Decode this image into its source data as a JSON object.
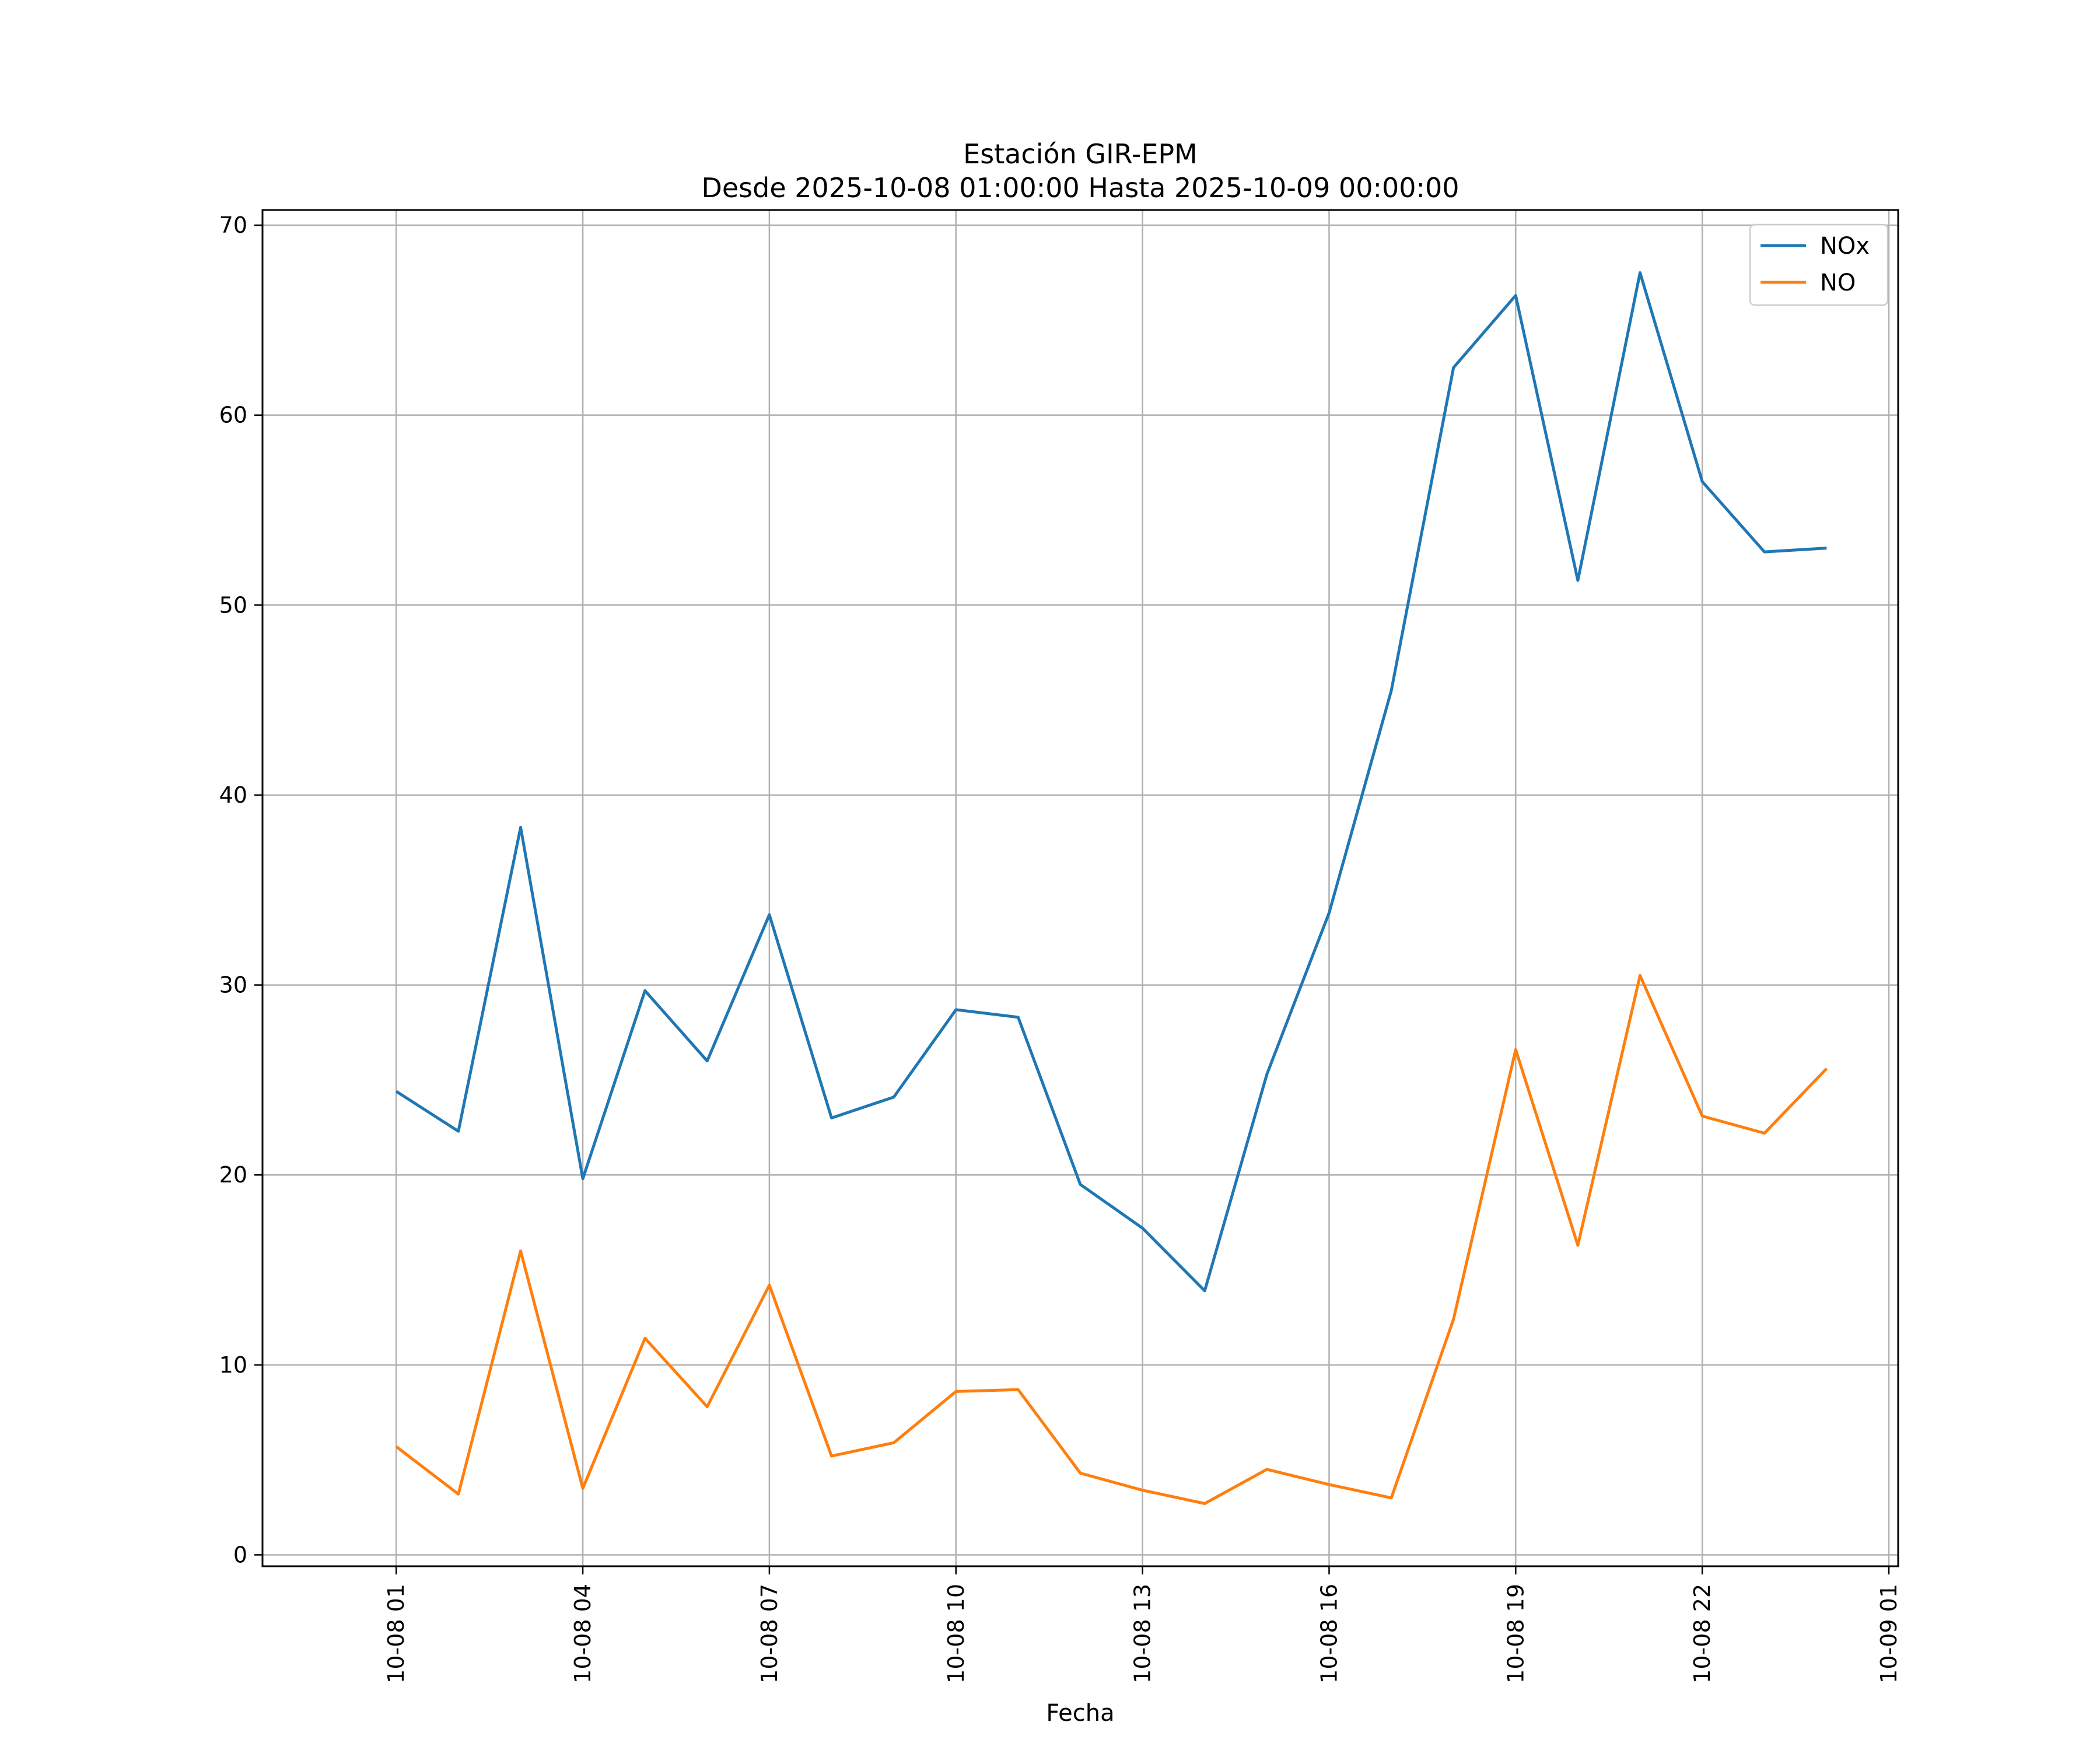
{
  "chart_data": {
    "type": "line",
    "title": "Estación GIR-EPM",
    "subtitle": "Desde 2025-10-08 01:00:00 Hasta 2025-10-09 00:00:00",
    "xlabel": "Fecha",
    "ylabel": "",
    "x": [
      "2025-10-08 01:00",
      "2025-10-08 02:00",
      "2025-10-08 03:00",
      "2025-10-08 04:00",
      "2025-10-08 05:00",
      "2025-10-08 06:00",
      "2025-10-08 07:00",
      "2025-10-08 08:00",
      "2025-10-08 09:00",
      "2025-10-08 10:00",
      "2025-10-08 11:00",
      "2025-10-08 12:00",
      "2025-10-08 13:00",
      "2025-10-08 14:00",
      "2025-10-08 15:00",
      "2025-10-08 16:00",
      "2025-10-08 17:00",
      "2025-10-08 18:00",
      "2025-10-08 19:00",
      "2025-10-08 20:00",
      "2025-10-08 21:00",
      "2025-10-08 22:00",
      "2025-10-08 23:00",
      "2025-10-09 00:00"
    ],
    "series": [
      {
        "name": "NOx",
        "color": "#1f77b4",
        "values": [
          24.4,
          22.3,
          38.3,
          19.8,
          29.7,
          26.0,
          33.7,
          23.0,
          24.1,
          28.7,
          28.3,
          19.5,
          17.2,
          13.9,
          25.3,
          33.8,
          45.5,
          62.5,
          66.3,
          51.3,
          67.5,
          56.5,
          52.8,
          53.0
        ]
      },
      {
        "name": "NO",
        "color": "#ff7f0e",
        "values": [
          5.7,
          3.2,
          16.0,
          3.5,
          11.4,
          7.8,
          14.2,
          5.2,
          5.9,
          8.6,
          8.7,
          4.3,
          3.4,
          2.7,
          4.5,
          3.7,
          3.0,
          12.4,
          26.6,
          16.3,
          30.5,
          23.1,
          22.2,
          25.6
        ]
      }
    ],
    "xticks": [
      "10-08 01",
      "10-08 04",
      "10-08 07",
      "10-08 10",
      "10-08 13",
      "10-08 16",
      "10-08 19",
      "10-08 22",
      "10-09 01"
    ],
    "yticks": [
      0,
      10,
      20,
      30,
      40,
      50,
      60,
      70
    ],
    "xlim": [
      "2025-10-07 22:51",
      "2025-10-09 01:09"
    ],
    "ylim": [
      -0.6,
      70.8
    ],
    "grid": true,
    "legend": "top-right"
  }
}
